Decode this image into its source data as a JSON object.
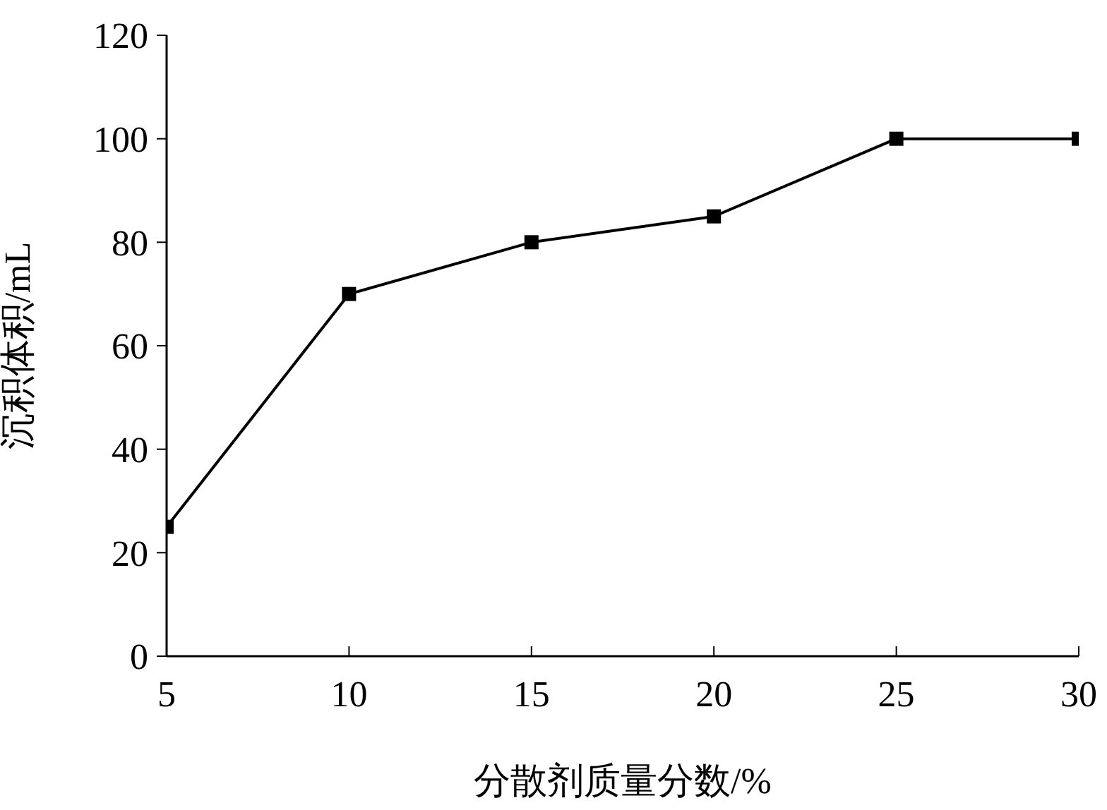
{
  "chart_data": {
    "type": "line",
    "xlabel": "分散剂质量分数/%",
    "ylabel": "沉积体积/mL",
    "x": [
      5,
      10,
      15,
      20,
      25,
      30
    ],
    "series": [
      {
        "color": "#000000",
        "values": [
          25,
          70,
          80,
          85,
          100,
          100
        ]
      }
    ],
    "xlim": [
      5,
      30
    ],
    "xticks": [
      5,
      10,
      15,
      20,
      25,
      30
    ],
    "ylim": [
      0,
      120
    ],
    "yticks": [
      0,
      20,
      40,
      60,
      80,
      100,
      120
    ],
    "grid": false,
    "legend": false,
    "marker": "square",
    "line_style": "solid"
  }
}
